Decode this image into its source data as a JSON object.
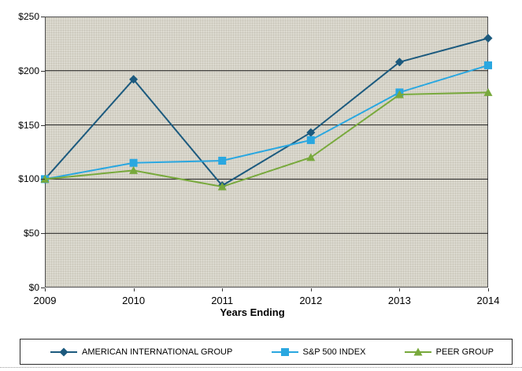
{
  "chart_data": {
    "type": "line",
    "title": "",
    "categories": [
      "2009",
      "2010",
      "2011",
      "2012",
      "2013",
      "2014"
    ],
    "series": [
      {
        "name": "AMERICAN INTERNATIONAL GROUP",
        "marker": "diamond",
        "color": "#1c5a7e",
        "values": [
          100,
          192,
          94,
          143,
          208,
          230
        ]
      },
      {
        "name": "S&P 500 INDEX",
        "marker": "square",
        "color": "#2aa7e0",
        "values": [
          100,
          115,
          117,
          136,
          180,
          205
        ]
      },
      {
        "name": "PEER GROUP",
        "marker": "triangle",
        "color": "#78a93c",
        "values": [
          100,
          108,
          93,
          120,
          178,
          180
        ]
      }
    ],
    "xlabel": "Years Ending",
    "ylabel": "",
    "ylim": [
      0,
      250
    ],
    "ytick_step": 50,
    "ytick_labels": [
      "$0",
      "$50",
      "$100",
      "$150",
      "$200",
      "$250"
    ],
    "grid": true,
    "legend_position": "bottom",
    "plot_bg": "#dcdad0",
    "gridline_color": "#1a1a1a"
  }
}
